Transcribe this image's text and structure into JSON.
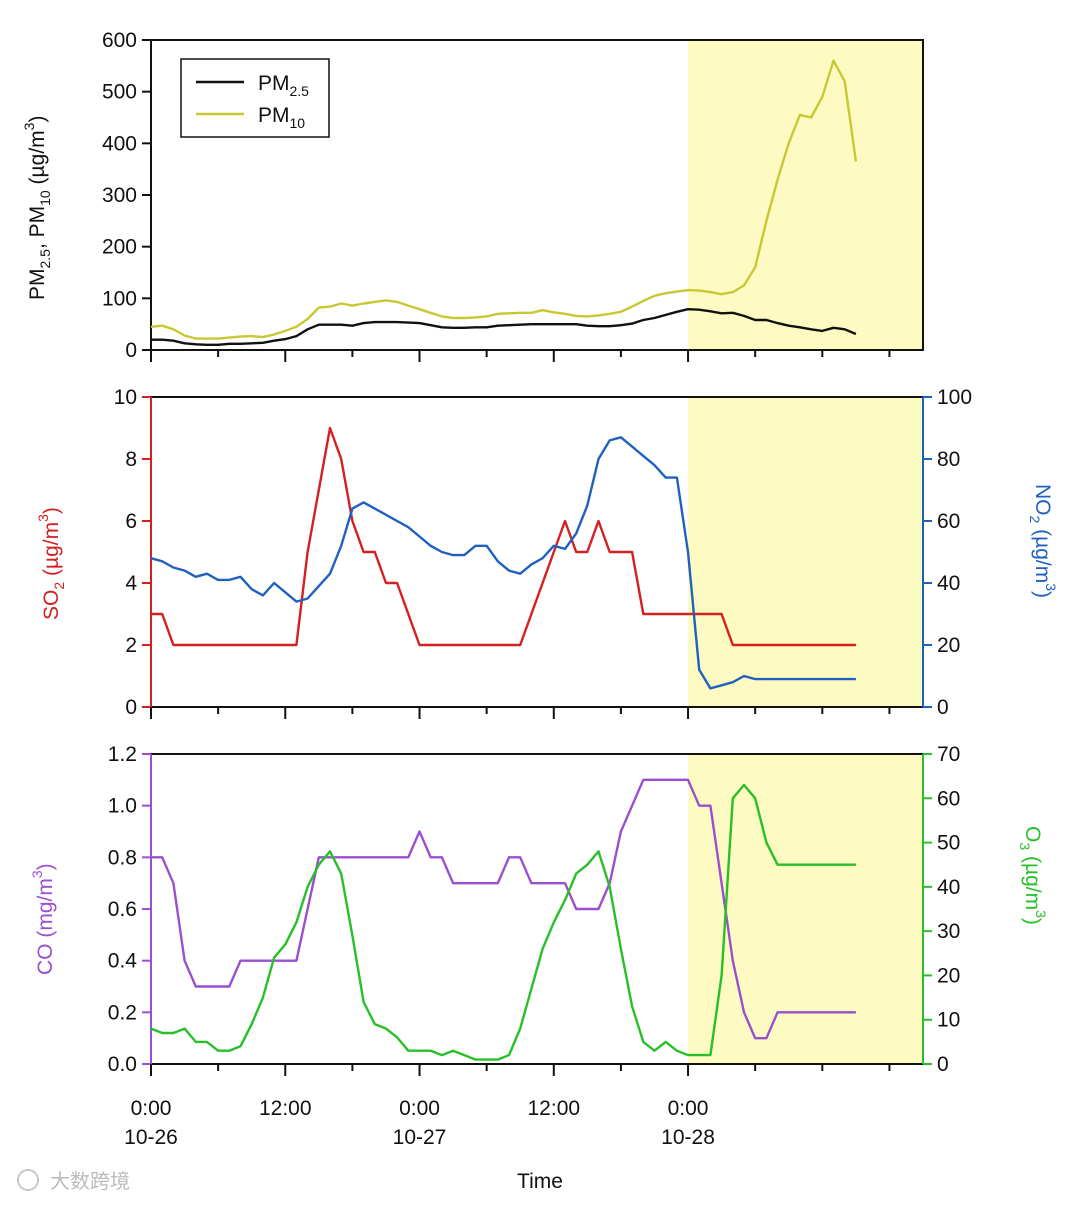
{
  "colors": {
    "pm25": "#111111",
    "pm10": "#c8c832",
    "so2": "#d42020",
    "no2": "#2060c0",
    "co": "#9b4fd0",
    "o3": "#28c028",
    "highlight": "#fdfbc2"
  },
  "chart_data": [
    {
      "type": "line",
      "panel": "top",
      "ylabel": "PM2.5, PM10 (µg/m3)",
      "ylim": [
        0,
        600
      ],
      "yticks": [
        "0",
        "100",
        "200",
        "300",
        "400",
        "500",
        "600"
      ],
      "xlim_hours": [
        0,
        69
      ],
      "legend_position": "top-left",
      "highlight_hours": [
        48,
        69
      ],
      "series": [
        {
          "name": "PM2.5",
          "legend_main": "PM",
          "legend_sub": "2.5",
          "x": [
            0,
            1,
            2,
            3,
            4,
            5,
            6,
            7,
            8,
            9,
            10,
            11,
            12,
            13,
            14,
            15,
            16,
            17,
            18,
            19,
            20,
            21,
            22,
            23,
            24,
            25,
            26,
            27,
            28,
            29,
            30,
            31,
            32,
            33,
            34,
            35,
            36,
            37,
            38,
            39,
            40,
            41,
            42,
            43,
            44,
            45,
            46,
            47,
            48,
            49,
            50,
            51,
            52,
            53,
            54
          ],
          "values": [
            20,
            20,
            18,
            13,
            11,
            10,
            10,
            12,
            12,
            13,
            14,
            18,
            21,
            27,
            40,
            49,
            49,
            49,
            47,
            52,
            54,
            54,
            54,
            53,
            52,
            48,
            44,
            43,
            43,
            44,
            44,
            47,
            48,
            49,
            50,
            50,
            50,
            50,
            50,
            47,
            46,
            46,
            48,
            51,
            58,
            62,
            68,
            74,
            79,
            78,
            75,
            71,
            72,
            66,
            58
          ]
        },
        {
          "name": "PM10",
          "legend_main": "PM",
          "legend_sub": "10",
          "x": [
            0,
            1,
            2,
            3,
            4,
            5,
            6,
            7,
            8,
            9,
            10,
            11,
            12,
            13,
            14,
            15,
            16,
            17,
            18,
            19,
            20,
            21,
            22,
            23,
            24,
            25,
            26,
            27,
            28,
            29,
            30,
            31,
            32,
            33,
            34,
            35,
            36,
            37,
            38,
            39,
            40,
            41,
            42,
            43,
            44,
            45,
            46,
            47,
            48,
            49,
            50,
            51,
            52,
            53,
            54
          ],
          "values": [
            45,
            47,
            40,
            28,
            22,
            22,
            22,
            24,
            26,
            27,
            25,
            30,
            37,
            45,
            60,
            82,
            84,
            90,
            86,
            90,
            93,
            96,
            93,
            86,
            79,
            72,
            65,
            62,
            62,
            63,
            65,
            70,
            71,
            72,
            72,
            77,
            73,
            70,
            66,
            65,
            67,
            70,
            74,
            84,
            95,
            105,
            110,
            113,
            116,
            115,
            112,
            108,
            112,
            125,
            160
          ]
        }
      ],
      "series_tail": [
        {
          "name": "PM2.5",
          "x": [
            54,
            55,
            56,
            57,
            58,
            59,
            60,
            61,
            62,
            63
          ],
          "values": [
            58,
            58,
            52,
            47,
            44,
            40,
            37,
            43,
            40,
            31
          ]
        },
        {
          "name": "PM10",
          "x": [
            54,
            55,
            56,
            57,
            58,
            59,
            60,
            61,
            62,
            63
          ],
          "values": [
            160,
            250,
            330,
            400,
            455,
            450,
            490,
            560,
            520,
            365
          ]
        }
      ]
    },
    {
      "type": "line",
      "panel": "middle",
      "ylabel_left": "SO2 (µg/m3)",
      "ylabel_right": "NO2 (µg/m3)",
      "ylim_left": [
        0,
        10
      ],
      "ylim_right": [
        0,
        100
      ],
      "yticks_left": [
        "0",
        "2",
        "4",
        "6",
        "8",
        "10"
      ],
      "yticks_right": [
        "0",
        "20",
        "40",
        "60",
        "80",
        "100"
      ],
      "highlight_hours": [
        48,
        69
      ],
      "series": [
        {
          "name": "SO2",
          "axis": "left",
          "x": [
            0,
            1,
            2,
            3,
            4,
            5,
            6,
            7,
            8,
            9,
            10,
            11,
            12,
            13,
            14,
            15,
            16,
            17,
            18,
            19,
            20,
            21,
            22,
            23,
            24,
            25,
            26,
            27,
            28,
            29,
            30,
            31,
            32,
            33,
            34,
            35,
            36,
            37,
            38,
            39,
            40,
            41,
            42,
            43,
            44,
            45,
            46,
            47,
            48,
            49,
            50,
            51,
            52,
            53,
            54,
            55,
            56,
            57,
            58,
            59,
            60,
            61,
            62,
            63
          ],
          "values": [
            3,
            3,
            2,
            2,
            2,
            2,
            2,
            2,
            2,
            2,
            2,
            2,
            2,
            2,
            5,
            7,
            9,
            8,
            6,
            5,
            5,
            4,
            4,
            3,
            2,
            2,
            2,
            2,
            2,
            2,
            2,
            2,
            2,
            2,
            3,
            4,
            5,
            6,
            5,
            5,
            6,
            5,
            5,
            5,
            3,
            3,
            3,
            3,
            3,
            3,
            3,
            3,
            2,
            2,
            2,
            2,
            2,
            2,
            2,
            2,
            2,
            2,
            2,
            2
          ]
        },
        {
          "name": "NO2",
          "axis": "right",
          "x": [
            0,
            1,
            2,
            3,
            4,
            5,
            6,
            7,
            8,
            9,
            10,
            11,
            12,
            13,
            14,
            15,
            16,
            17,
            18,
            19,
            20,
            21,
            22,
            23,
            24,
            25,
            26,
            27,
            28,
            29,
            30,
            31,
            32,
            33,
            34,
            35,
            36,
            37,
            38,
            39,
            40,
            41,
            42,
            43,
            44,
            45,
            46,
            47,
            48,
            49,
            50,
            51,
            52,
            53,
            54,
            55,
            56,
            57,
            58,
            59,
            60,
            61,
            62,
            63
          ],
          "values": [
            48,
            47,
            45,
            44,
            42,
            43,
            41,
            41,
            42,
            38,
            36,
            40,
            37,
            34,
            35,
            39,
            43,
            52,
            64,
            66,
            64,
            62,
            60,
            58,
            55,
            52,
            50,
            49,
            49,
            52,
            52,
            47,
            44,
            43,
            46,
            48,
            52,
            51,
            56,
            65,
            80,
            86,
            87,
            84,
            81,
            78,
            74,
            74,
            50,
            12,
            6,
            7,
            8,
            10,
            9,
            9,
            9,
            9,
            9,
            9,
            9,
            9,
            9,
            9
          ]
        }
      ]
    },
    {
      "type": "line",
      "panel": "bottom",
      "ylabel_left": "CO (mg/m3)",
      "ylabel_right": "O3 (µg/m3)",
      "ylim_left": [
        0,
        1.2
      ],
      "ylim_right": [
        0,
        70
      ],
      "yticks_left": [
        "0.0",
        "0.2",
        "0.4",
        "0.6",
        "0.8",
        "1.0",
        "1.2"
      ],
      "yticks_right": [
        "0",
        "10",
        "20",
        "30",
        "40",
        "50",
        "60",
        "70"
      ],
      "xlabel": "Time",
      "xticks": [
        {
          "hour": 0,
          "time": "0:00",
          "date": "10-26"
        },
        {
          "hour": 12,
          "time": "12:00",
          "date": ""
        },
        {
          "hour": 24,
          "time": "0:00",
          "date": "10-27"
        },
        {
          "hour": 36,
          "time": "12:00",
          "date": ""
        },
        {
          "hour": 48,
          "time": "0:00",
          "date": "10-28"
        }
      ],
      "minor_xtick_hours": [
        6,
        18,
        30,
        42,
        54,
        60,
        66
      ],
      "highlight_hours": [
        48,
        69
      ],
      "series": [
        {
          "name": "CO",
          "axis": "left",
          "x": [
            0,
            1,
            2,
            3,
            4,
            5,
            6,
            7,
            8,
            9,
            10,
            11,
            12,
            13,
            14,
            15,
            16,
            17,
            18,
            19,
            20,
            21,
            22,
            23,
            24,
            25,
            26,
            27,
            28,
            29,
            30,
            31,
            32,
            33,
            34,
            35,
            36,
            37,
            38,
            39,
            40,
            41,
            42,
            43,
            44,
            45,
            46,
            47,
            48,
            49,
            50,
            51,
            52,
            53,
            54,
            55,
            56,
            57,
            58,
            59,
            60,
            61,
            62,
            63
          ],
          "values": [
            0.8,
            0.8,
            0.7,
            0.4,
            0.3,
            0.3,
            0.3,
            0.3,
            0.4,
            0.4,
            0.4,
            0.4,
            0.4,
            0.4,
            0.6,
            0.8,
            0.8,
            0.8,
            0.8,
            0.8,
            0.8,
            0.8,
            0.8,
            0.8,
            0.9,
            0.8,
            0.8,
            0.7,
            0.7,
            0.7,
            0.7,
            0.7,
            0.8,
            0.8,
            0.7,
            0.7,
            0.7,
            0.7,
            0.6,
            0.6,
            0.6,
            0.7,
            0.9,
            1.0,
            1.1,
            1.1,
            1.1,
            1.1,
            1.1,
            1.0,
            1.0,
            0.7,
            0.4,
            0.2,
            0.1,
            0.1,
            0.2,
            0.2,
            0.2,
            0.2,
            0.2,
            0.2,
            0.2,
            0.2
          ]
        },
        {
          "name": "O3",
          "axis": "right",
          "x": [
            0,
            1,
            2,
            3,
            4,
            5,
            6,
            7,
            8,
            9,
            10,
            11,
            12,
            13,
            14,
            15,
            16,
            17,
            18,
            19,
            20,
            21,
            22,
            23,
            24,
            25,
            26,
            27,
            28,
            29,
            30,
            31,
            32,
            33,
            34,
            35,
            36,
            37,
            38,
            39,
            40,
            41,
            42,
            43,
            44,
            45,
            46,
            47,
            48,
            49,
            50,
            51,
            52,
            53,
            54,
            55,
            56,
            57,
            58,
            59,
            60,
            61,
            62,
            63
          ],
          "values": [
            8,
            7,
            7,
            8,
            5,
            5,
            3,
            3,
            4,
            9,
            15,
            24,
            27,
            32,
            40,
            45,
            48,
            43,
            29,
            14,
            9,
            8,
            6,
            3,
            3,
            3,
            2,
            3,
            2,
            1,
            1,
            1,
            2,
            8,
            17,
            26,
            32,
            37,
            43,
            45,
            48,
            40,
            26,
            13,
            5,
            3,
            5,
            3,
            2,
            2,
            2,
            20,
            60,
            63,
            60,
            50,
            45,
            45,
            45,
            45,
            45,
            45,
            45,
            45
          ]
        }
      ]
    }
  ],
  "watermark": "大数跨境"
}
